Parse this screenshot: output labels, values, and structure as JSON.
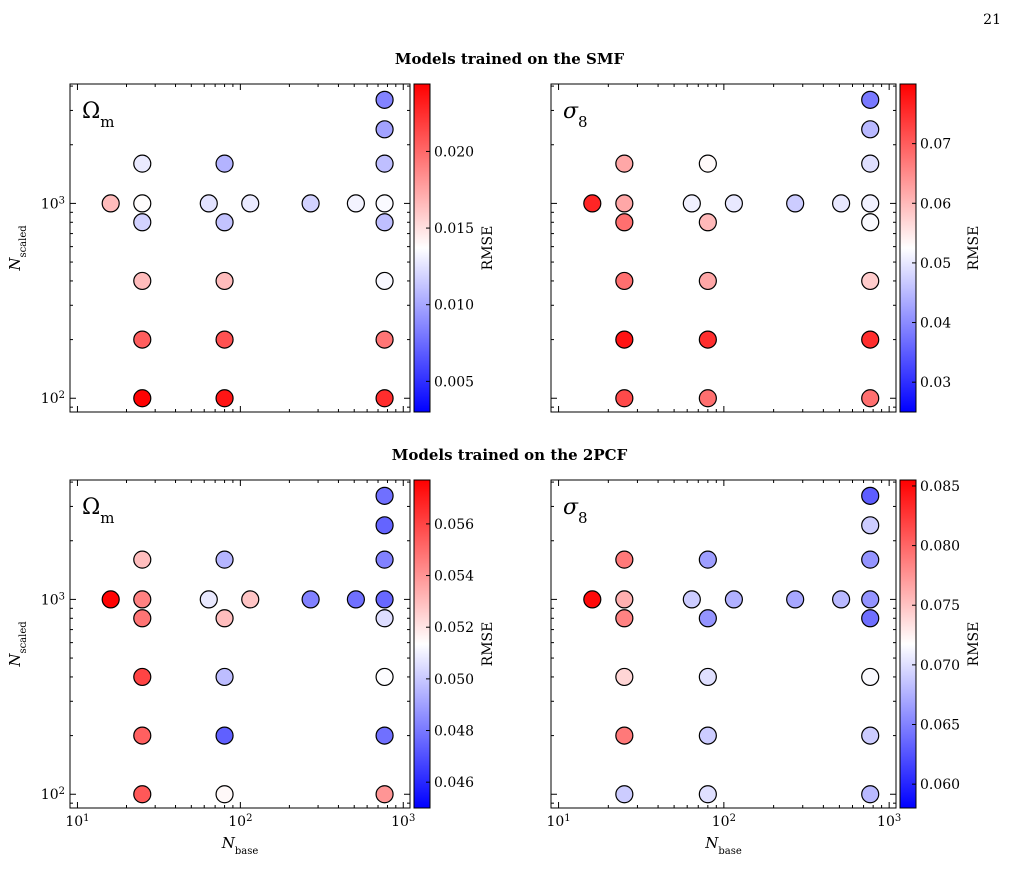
{
  "page_number": "21",
  "row_titles": [
    "Models trained on the SMF",
    "Models trained on the 2PCF"
  ],
  "colorbar_label": "RMSE",
  "xlabel": "N",
  "xlabel_sub": "base",
  "ylabel": "N",
  "ylabel_sub": "scaled",
  "colormap": [
    "#0000ff",
    "#ffffff",
    "#ff0000"
  ],
  "chart_data": [
    {
      "type": "scatter",
      "panel": "smf-omega",
      "param_label": "Ω",
      "param_sub": "m",
      "xscale": "log",
      "yscale": "log",
      "xlim": [
        9,
        1100
      ],
      "ylim": [
        85,
        4100
      ],
      "clim": [
        0.003,
        0.0244
      ],
      "cbar_ticks": [
        "0.005",
        "0.010",
        "0.015",
        "0.020"
      ],
      "points": [
        {
          "x": 16,
          "y": 1000,
          "v": 0.0165
        },
        {
          "x": 25,
          "y": 1600,
          "v": 0.0128
        },
        {
          "x": 25,
          "y": 1000,
          "v": 0.0138
        },
        {
          "x": 25,
          "y": 800,
          "v": 0.0118
        },
        {
          "x": 25,
          "y": 400,
          "v": 0.0165
        },
        {
          "x": 25,
          "y": 200,
          "v": 0.0205
        },
        {
          "x": 25,
          "y": 100,
          "v": 0.0243
        },
        {
          "x": 64,
          "y": 1000,
          "v": 0.0125
        },
        {
          "x": 80,
          "y": 1600,
          "v": 0.0105
        },
        {
          "x": 80,
          "y": 800,
          "v": 0.0112
        },
        {
          "x": 80,
          "y": 400,
          "v": 0.0165
        },
        {
          "x": 80,
          "y": 200,
          "v": 0.021
        },
        {
          "x": 80,
          "y": 100,
          "v": 0.0235
        },
        {
          "x": 115,
          "y": 1000,
          "v": 0.0128
        },
        {
          "x": 270,
          "y": 1000,
          "v": 0.0118
        },
        {
          "x": 512,
          "y": 1000,
          "v": 0.0132
        },
        {
          "x": 768,
          "y": 3400,
          "v": 0.0085
        },
        {
          "x": 768,
          "y": 2400,
          "v": 0.0098
        },
        {
          "x": 768,
          "y": 1600,
          "v": 0.011
        },
        {
          "x": 768,
          "y": 1000,
          "v": 0.0135
        },
        {
          "x": 768,
          "y": 800,
          "v": 0.011
        },
        {
          "x": 768,
          "y": 400,
          "v": 0.0134
        },
        {
          "x": 768,
          "y": 200,
          "v": 0.0195
        },
        {
          "x": 768,
          "y": 100,
          "v": 0.0225
        }
      ]
    },
    {
      "type": "scatter",
      "panel": "smf-sigma",
      "param_label": "σ",
      "param_sub": "8",
      "xscale": "log",
      "yscale": "log",
      "xlim": [
        9,
        1100
      ],
      "ylim": [
        85,
        4100
      ],
      "clim": [
        0.025,
        0.08
      ],
      "cbar_ticks": [
        "0.03",
        "0.04",
        "0.05",
        "0.06",
        "0.07"
      ],
      "points": [
        {
          "x": 16,
          "y": 1000,
          "v": 0.076
        },
        {
          "x": 25,
          "y": 1600,
          "v": 0.062
        },
        {
          "x": 25,
          "y": 1000,
          "v": 0.062
        },
        {
          "x": 25,
          "y": 800,
          "v": 0.068
        },
        {
          "x": 25,
          "y": 400,
          "v": 0.068
        },
        {
          "x": 25,
          "y": 200,
          "v": 0.078
        },
        {
          "x": 25,
          "y": 100,
          "v": 0.072
        },
        {
          "x": 64,
          "y": 1000,
          "v": 0.051
        },
        {
          "x": 80,
          "y": 1600,
          "v": 0.053
        },
        {
          "x": 80,
          "y": 800,
          "v": 0.06
        },
        {
          "x": 80,
          "y": 400,
          "v": 0.062
        },
        {
          "x": 80,
          "y": 200,
          "v": 0.075
        },
        {
          "x": 80,
          "y": 100,
          "v": 0.068
        },
        {
          "x": 115,
          "y": 1000,
          "v": 0.05
        },
        {
          "x": 270,
          "y": 1000,
          "v": 0.047
        },
        {
          "x": 512,
          "y": 1000,
          "v": 0.05
        },
        {
          "x": 768,
          "y": 3400,
          "v": 0.038
        },
        {
          "x": 768,
          "y": 2400,
          "v": 0.045
        },
        {
          "x": 768,
          "y": 1600,
          "v": 0.049
        },
        {
          "x": 768,
          "y": 1000,
          "v": 0.051
        },
        {
          "x": 768,
          "y": 800,
          "v": 0.052
        },
        {
          "x": 768,
          "y": 400,
          "v": 0.058
        },
        {
          "x": 768,
          "y": 200,
          "v": 0.075
        },
        {
          "x": 768,
          "y": 100,
          "v": 0.068
        }
      ]
    },
    {
      "type": "scatter",
      "panel": "2pcf-omega",
      "param_label": "Ω",
      "param_sub": "m",
      "xscale": "log",
      "yscale": "log",
      "xlim": [
        9,
        1100
      ],
      "ylim": [
        85,
        4100
      ],
      "clim": [
        0.045,
        0.0577
      ],
      "cbar_ticks": [
        "0.046",
        "0.048",
        "0.050",
        "0.052",
        "0.054",
        "0.056"
      ],
      "points": [
        {
          "x": 16,
          "y": 1000,
          "v": 0.0576
        },
        {
          "x": 25,
          "y": 1600,
          "v": 0.053
        },
        {
          "x": 25,
          "y": 1000,
          "v": 0.0545
        },
        {
          "x": 25,
          "y": 800,
          "v": 0.0548
        },
        {
          "x": 25,
          "y": 400,
          "v": 0.056
        },
        {
          "x": 25,
          "y": 200,
          "v": 0.0553
        },
        {
          "x": 25,
          "y": 100,
          "v": 0.0555
        },
        {
          "x": 64,
          "y": 1000,
          "v": 0.0508
        },
        {
          "x": 80,
          "y": 1600,
          "v": 0.0495
        },
        {
          "x": 80,
          "y": 800,
          "v": 0.053
        },
        {
          "x": 80,
          "y": 400,
          "v": 0.0497
        },
        {
          "x": 80,
          "y": 200,
          "v": 0.0474
        },
        {
          "x": 80,
          "y": 100,
          "v": 0.0515
        },
        {
          "x": 115,
          "y": 1000,
          "v": 0.0528
        },
        {
          "x": 270,
          "y": 1000,
          "v": 0.0482
        },
        {
          "x": 512,
          "y": 1000,
          "v": 0.0478
        },
        {
          "x": 768,
          "y": 3400,
          "v": 0.0478
        },
        {
          "x": 768,
          "y": 2400,
          "v": 0.0475
        },
        {
          "x": 768,
          "y": 1600,
          "v": 0.0482
        },
        {
          "x": 768,
          "y": 1000,
          "v": 0.0476
        },
        {
          "x": 768,
          "y": 800,
          "v": 0.0505
        },
        {
          "x": 768,
          "y": 400,
          "v": 0.0513
        },
        {
          "x": 768,
          "y": 200,
          "v": 0.0478
        },
        {
          "x": 768,
          "y": 100,
          "v": 0.054
        }
      ]
    },
    {
      "type": "scatter",
      "panel": "2pcf-sigma",
      "param_label": "σ",
      "param_sub": "8",
      "xscale": "log",
      "yscale": "log",
      "xlim": [
        9,
        1100
      ],
      "ylim": [
        85,
        4100
      ],
      "clim": [
        0.058,
        0.0855
      ],
      "cbar_ticks": [
        "0.060",
        "0.065",
        "0.070",
        "0.075",
        "0.080",
        "0.085"
      ],
      "points": [
        {
          "x": 16,
          "y": 1000,
          "v": 0.085
        },
        {
          "x": 25,
          "y": 1600,
          "v": 0.079
        },
        {
          "x": 25,
          "y": 1000,
          "v": 0.076
        },
        {
          "x": 25,
          "y": 800,
          "v": 0.0785
        },
        {
          "x": 25,
          "y": 400,
          "v": 0.074
        },
        {
          "x": 25,
          "y": 200,
          "v": 0.079
        },
        {
          "x": 25,
          "y": 100,
          "v": 0.069
        },
        {
          "x": 64,
          "y": 1000,
          "v": 0.069
        },
        {
          "x": 80,
          "y": 1600,
          "v": 0.0665
        },
        {
          "x": 80,
          "y": 800,
          "v": 0.066
        },
        {
          "x": 80,
          "y": 400,
          "v": 0.07
        },
        {
          "x": 80,
          "y": 200,
          "v": 0.069
        },
        {
          "x": 80,
          "y": 100,
          "v": 0.07
        },
        {
          "x": 115,
          "y": 1000,
          "v": 0.0675
        },
        {
          "x": 270,
          "y": 1000,
          "v": 0.067
        },
        {
          "x": 512,
          "y": 1000,
          "v": 0.068
        },
        {
          "x": 768,
          "y": 3400,
          "v": 0.063
        },
        {
          "x": 768,
          "y": 2400,
          "v": 0.069
        },
        {
          "x": 768,
          "y": 1600,
          "v": 0.066
        },
        {
          "x": 768,
          "y": 1000,
          "v": 0.066
        },
        {
          "x": 768,
          "y": 800,
          "v": 0.064
        },
        {
          "x": 768,
          "y": 400,
          "v": 0.0715
        },
        {
          "x": 768,
          "y": 200,
          "v": 0.069
        },
        {
          "x": 768,
          "y": 100,
          "v": 0.068
        }
      ]
    }
  ]
}
